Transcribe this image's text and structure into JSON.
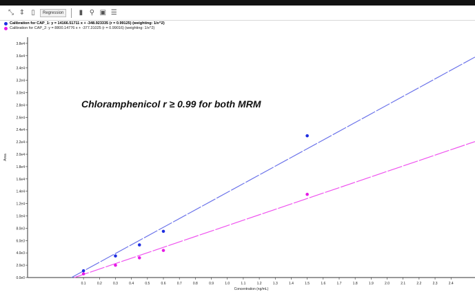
{
  "toolbar": {
    "icons": [
      "zoom-icon",
      "pin-icon",
      "page-icon",
      "delete-icon",
      "magnify-icon",
      "window-icon",
      "list-icon"
    ],
    "regression_label": "Regression"
  },
  "colors": {
    "series1": "#1f2ee0",
    "series1_line": "#6b73ea",
    "series2": "#e61be6",
    "series2_line": "#ef52ef"
  },
  "chart_data": {
    "type": "scatter",
    "annotation": "Chloramphenicol r ≥ 0.99 for both MRM",
    "xlabel": "Concentration (ng/mL)",
    "ylabel": "Area",
    "xlim": [
      -0.25,
      2.55
    ],
    "ylim": [
      0,
      39000
    ],
    "x_ticks": [
      "0.1",
      "0.2",
      "0.3",
      "0.4",
      "0.5",
      "0.6",
      "0.7",
      "0.8",
      "0.9",
      "1.0",
      "1.1",
      "1.2",
      "1.3",
      "1.4",
      "1.5",
      "1.6",
      "1.7",
      "1.8",
      "1.9",
      "2.0",
      "2.1",
      "2.2",
      "2.3",
      "2.4"
    ],
    "y_ticks": [
      "0.0e0",
      "2.0e3",
      "4.0e3",
      "6.0e3",
      "8.0e3",
      "1.0e4",
      "1.2e4",
      "1.4e4",
      "1.6e4",
      "1.8e4",
      "2.0e4",
      "2.2e4",
      "2.4e4",
      "2.6e4",
      "2.8e4",
      "3.0e4",
      "3.2e4",
      "3.4e4",
      "3.6e4",
      "3.8e4"
    ],
    "grid": false,
    "legend_position": "top-left",
    "series": [
      {
        "name": "Calibration for CAP_1",
        "legend": "Calibration for CAP_1: y = 14166.51711 x + -348.923335 (r = 0.99125) (weighting: 1/x^2)",
        "points": [
          [
            0.1,
            1100
          ],
          [
            0.3,
            3500
          ],
          [
            0.45,
            5300
          ],
          [
            0.6,
            7500
          ],
          [
            1.5,
            23000
          ]
        ],
        "fit": {
          "slope": 14166.51711,
          "intercept": -348.923335
        }
      },
      {
        "name": "Calibration for CAP_2",
        "legend": "Calibration for CAP_2: y = 8800.14776 x + -377.31025 (r = 0.99016) (weighting: 1/x^2)",
        "points": [
          [
            0.1,
            600
          ],
          [
            0.3,
            2000
          ],
          [
            0.45,
            3200
          ],
          [
            0.6,
            4400
          ],
          [
            1.5,
            13500
          ]
        ],
        "fit": {
          "slope": 8800.14776,
          "intercept": -377.31025
        }
      }
    ]
  }
}
